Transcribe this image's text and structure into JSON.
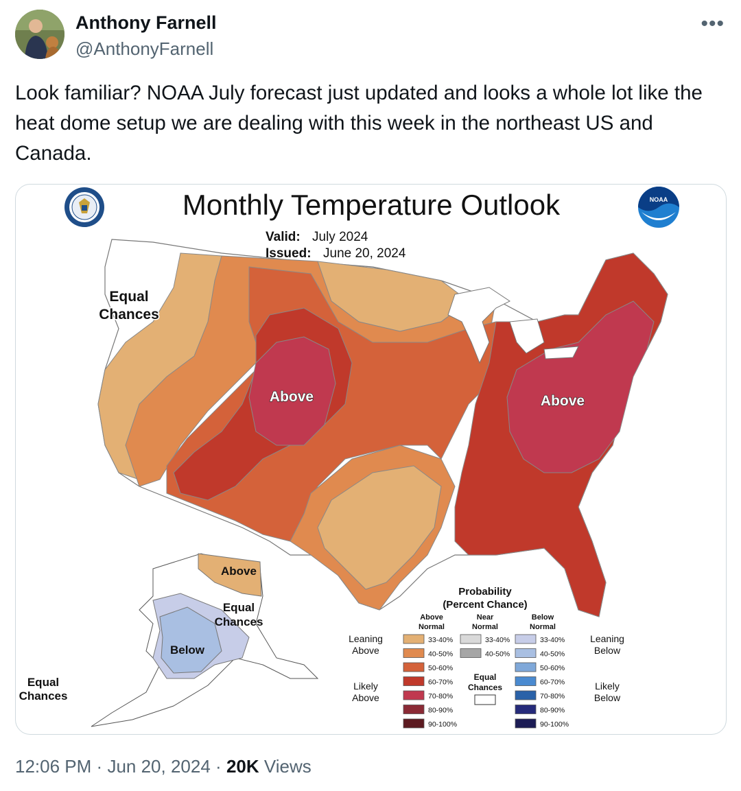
{
  "author": {
    "name": "Anthony Farnell",
    "handle": "@AnthonyFarnell"
  },
  "more_icon": "ellipsis-icon",
  "tweet": {
    "text": "Look familiar? NOAA July forecast just updated and looks a whole lot like the heat dome setup we are dealing with this week in the northeast US and Canada."
  },
  "map": {
    "title": "Monthly Temperature Outlook",
    "valid_label": "Valid:",
    "valid_value": "July 2024",
    "issued_label": "Issued:",
    "issued_value": "June 20, 2024",
    "region_labels": {
      "equal_chances_west_1": "Equal",
      "equal_chances_west_2": "Chances",
      "above_west": "Above",
      "above_east": "Above",
      "alaska_above": "Above",
      "alaska_equal_1": "Equal",
      "alaska_equal_2": "Chances",
      "alaska_below": "Below",
      "alaska_equal_sw_1": "Equal",
      "alaska_equal_sw_2": "Chances"
    },
    "colors": {
      "above_33_40": "#e3b074",
      "above_40_50": "#e08a4f",
      "above_50_60": "#d4623a",
      "above_60_70": "#c0392b",
      "above_70_80": "#c0394f",
      "above_80_90": "#8a2a35",
      "above_90_100": "#5c1a20",
      "near_33_40": "#d9d9d9",
      "near_40_50": "#a6a6a6",
      "below_33_40": "#c7cde8",
      "below_40_50": "#a9bfe2",
      "below_50_60": "#7fa8d9",
      "below_60_70": "#4a8ad0",
      "below_70_80": "#2a62a8",
      "below_80_90": "#262b7a",
      "below_90_100": "#1c1c55"
    },
    "legend": {
      "title_1": "Probability",
      "title_2": "(Percent Chance)",
      "above_head_1": "Above",
      "above_head_2": "Normal",
      "near_head_1": "Near",
      "near_head_2": "Normal",
      "below_head_1": "Below",
      "below_head_2": "Normal",
      "leaning_above_1": "Leaning",
      "leaning_above_2": "Above",
      "leaning_below_1": "Leaning",
      "leaning_below_2": "Below",
      "likely_above_1": "Likely",
      "likely_above_2": "Above",
      "likely_below_1": "Likely",
      "likely_below_2": "Below",
      "equal_1": "Equal",
      "equal_2": "Chances",
      "above_ranges": [
        "33-40%",
        "40-50%",
        "50-60%",
        "60-70%",
        "70-80%",
        "80-90%",
        "90-100%"
      ],
      "near_ranges": [
        "33-40%",
        "40-50%"
      ],
      "below_ranges": [
        "33-40%",
        "40-50%",
        "50-60%",
        "60-70%",
        "70-80%",
        "80-90%",
        "90-100%"
      ]
    },
    "logos": {
      "left": "commerce-seal-icon",
      "right": "noaa-logo-icon",
      "noaa_text": "NOAA"
    }
  },
  "meta": {
    "time": "12:06 PM",
    "separator": "·",
    "date": "Jun 20, 2024",
    "views_count": "20K",
    "views_label": "Views"
  }
}
